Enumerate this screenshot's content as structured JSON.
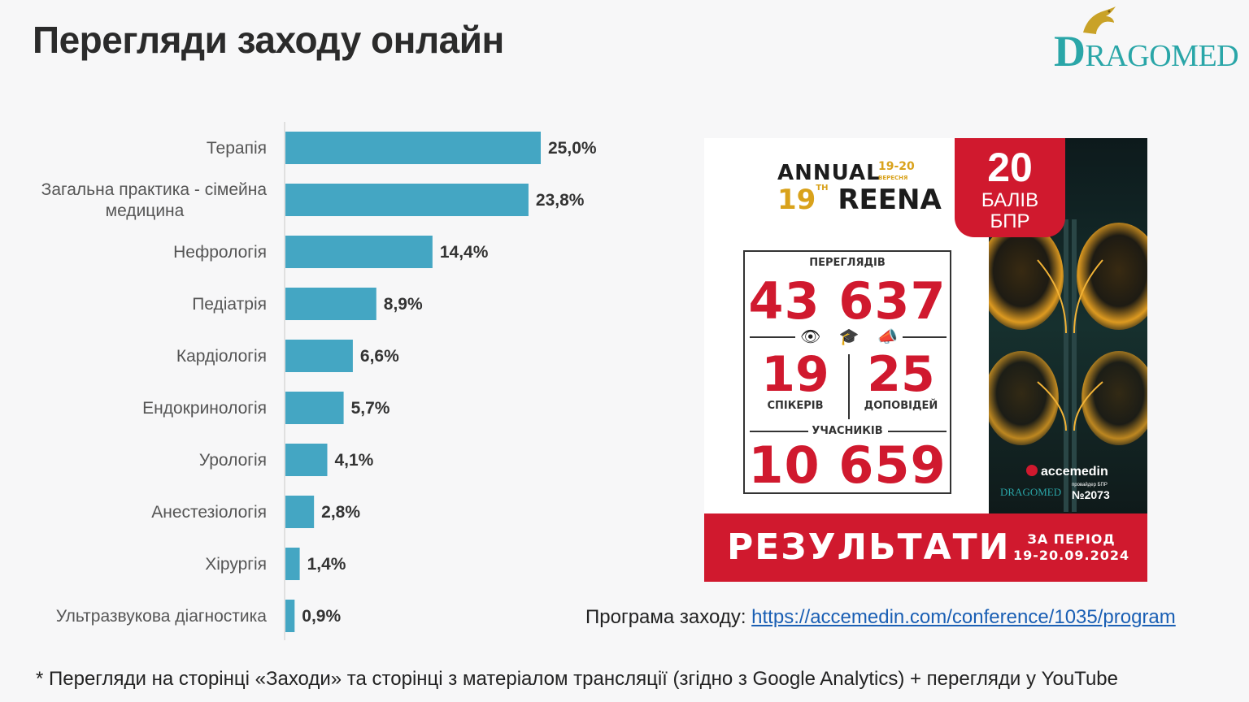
{
  "page": {
    "title": "Перегляди заходу онлайн",
    "program_prefix": "Програма заходу:",
    "program_link": "https://accemedin.com/conference/1035/program",
    "footnote": "* Перегляди на сторінці «Заходи» та сторінці з матеріалом трансляції (згідно з Google Analytics) + перегляди у YouTube"
  },
  "logo": {
    "text_big": "D",
    "text_rest": "RAGOMED",
    "color": "#2aa6a8"
  },
  "chart_data": {
    "type": "bar",
    "orientation": "horizontal",
    "categories": [
      [
        "Терапія"
      ],
      [
        "Загальна практика - сімейна",
        "медицина"
      ],
      [
        "Нефрологія"
      ],
      [
        "Педіатрія"
      ],
      [
        "Кардіологія"
      ],
      [
        "Ендокринологія"
      ],
      [
        "Урологія"
      ],
      [
        "Анестезіологія"
      ],
      [
        "Хірургія"
      ],
      [
        "Ультразвукова діагностика"
      ]
    ],
    "values": [
      25.0,
      23.8,
      14.4,
      8.9,
      6.6,
      5.7,
      4.1,
      2.8,
      1.4,
      0.9
    ],
    "value_labels": [
      "25,0%",
      "23,8%",
      "14,4%",
      "8,9%",
      "6,6%",
      "5,7%",
      "4,1%",
      "2,8%",
      "1,4%",
      "0,9%"
    ],
    "bar_color": "#44a6c3",
    "xlim": [
      0,
      25
    ],
    "grid": false
  },
  "poster": {
    "annual_line1": "ANNUAL",
    "annual_number": "19",
    "annual_number_suffix": "TH",
    "annual_line2": "REENA",
    "annual_dates": "19-20",
    "annual_month": "ВЕРЕСНЯ",
    "badge_number": "20",
    "badge_line1": "БАЛІВ",
    "badge_line2": "БПР",
    "views_label": "ПЕРЕГЛЯДІВ",
    "views_value": "43 637",
    "icons": [
      "eye-icon",
      "graduation-cap-icon",
      "megaphone-icon"
    ],
    "speakers_value": "19",
    "speakers_label": "СПІКЕРІВ",
    "reports_value": "25",
    "reports_label": "ДОПОВІДЕЙ",
    "participants_label": "УЧАСНИКІВ",
    "participants_value": "10 659",
    "results_label": "РЕЗУЛЬТАТИ",
    "period_line1": "ЗА ПЕРІОД",
    "period_line2": "19-20.09.2024",
    "brand": "accemedin",
    "partner_logo": "DRAGOMED",
    "provider_small": "провайдер БПР",
    "provider_number": "№2073",
    "accent_red": "#d0192e",
    "accent_gold": "#d9a21b"
  }
}
